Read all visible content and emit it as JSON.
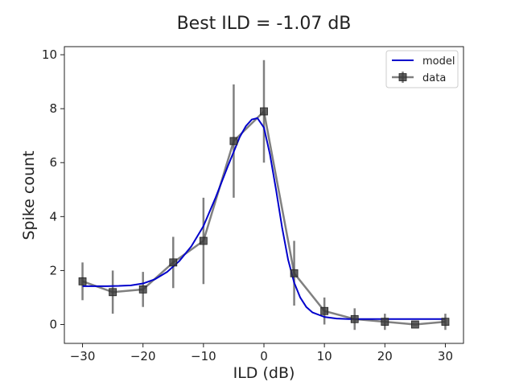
{
  "chart_data": {
    "type": "line",
    "title": "Best ILD = -1.07 dB",
    "xlabel": "ILD (dB)",
    "ylabel": "Spike count",
    "xlim": [
      -33,
      33
    ],
    "ylim": [
      -0.7,
      10.3
    ],
    "xticks": [
      -30,
      -20,
      -10,
      0,
      10,
      20,
      30
    ],
    "xtick_labels": [
      "−30",
      "−20",
      "−10",
      "0",
      "10",
      "20",
      "30"
    ],
    "yticks": [
      0,
      2,
      4,
      6,
      8,
      10
    ],
    "ytick_labels": [
      "0",
      "2",
      "4",
      "6",
      "8",
      "10"
    ],
    "grid": false,
    "legend_position": "top-right",
    "series": [
      {
        "name": "model",
        "kind": "line",
        "color": "#0000cc",
        "x": [
          -30,
          -28,
          -26,
          -24,
          -22,
          -20,
          -18,
          -16,
          -14,
          -12,
          -10,
          -8,
          -6,
          -4,
          -3,
          -2,
          -1.07,
          0,
          1,
          2,
          3,
          4,
          5,
          6,
          7,
          8,
          10,
          12,
          14,
          16,
          18,
          20,
          25,
          30
        ],
        "y": [
          1.42,
          1.42,
          1.42,
          1.43,
          1.45,
          1.52,
          1.68,
          1.95,
          2.35,
          2.9,
          3.65,
          4.7,
          5.85,
          6.95,
          7.35,
          7.6,
          7.65,
          7.3,
          6.3,
          5.0,
          3.6,
          2.4,
          1.55,
          1.0,
          0.65,
          0.45,
          0.28,
          0.22,
          0.2,
          0.2,
          0.2,
          0.2,
          0.2,
          0.2
        ]
      },
      {
        "name": "data",
        "kind": "errorbar",
        "color": "#555555",
        "x": [
          -30,
          -25,
          -20,
          -15,
          -10,
          -5,
          0,
          5,
          10,
          15,
          20,
          25,
          30
        ],
        "y": [
          1.6,
          1.2,
          1.3,
          2.3,
          3.1,
          6.8,
          7.9,
          1.9,
          0.5,
          0.2,
          0.1,
          0.0,
          0.1
        ],
        "yerr": [
          0.7,
          0.8,
          0.65,
          0.95,
          1.6,
          2.1,
          1.9,
          1.2,
          0.5,
          0.4,
          0.3,
          0.0,
          0.3
        ]
      }
    ]
  }
}
